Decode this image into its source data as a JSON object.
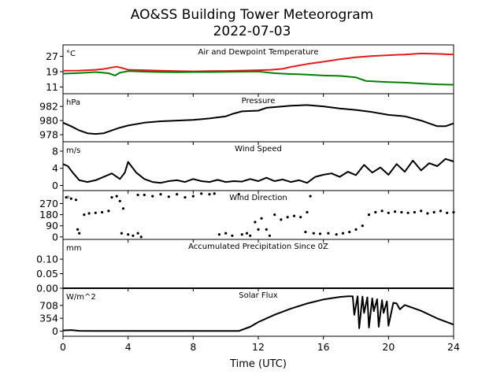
{
  "figure": {
    "title_line1": "AO&SS Building Tower Meteorogram",
    "title_line2": "2022-07-03",
    "xlabel": "Time (UTC)"
  },
  "chart_data": [
    {
      "type": "line",
      "title": "Air and Dewpoint Temperature",
      "unit": "°C",
      "x_ticks": [
        0,
        4,
        8,
        12,
        16,
        20,
        24
      ],
      "xlim": [
        0,
        24
      ],
      "y_ticks": [
        11,
        19,
        27
      ],
      "ylim": [
        7.5,
        33
      ],
      "grid": false,
      "series": [
        {
          "color": "#e41a1c",
          "x": [
            0,
            1,
            2,
            2.5,
            3,
            3.3,
            3.6,
            4,
            5,
            6,
            7,
            8,
            9,
            10,
            11,
            12,
            12.8,
            13.5,
            14,
            15,
            16,
            17,
            18,
            19,
            20,
            21,
            22,
            23,
            24
          ],
          "values": [
            19.5,
            19.6,
            20.0,
            20.4,
            21.2,
            21.6,
            21.0,
            20.0,
            19.8,
            19.5,
            19.3,
            19.2,
            19.3,
            19.4,
            19.6,
            19.8,
            20.0,
            20.5,
            21.5,
            23.0,
            24.2,
            25.5,
            26.5,
            27.2,
            27.6,
            28.0,
            28.5,
            28.3,
            28.0
          ]
        },
        {
          "color": "#008000",
          "x": [
            0,
            1,
            2,
            2.8,
            3.2,
            3.5,
            4,
            5,
            6,
            7,
            8,
            9,
            10,
            11,
            12,
            13,
            14,
            15,
            16,
            17,
            18,
            18.6,
            19,
            20,
            21,
            22,
            23,
            24
          ],
          "values": [
            18.0,
            18.3,
            18.8,
            18.2,
            17.0,
            18.5,
            19.3,
            19.0,
            18.8,
            18.7,
            18.8,
            18.8,
            18.9,
            19.0,
            19.1,
            18.2,
            17.8,
            17.5,
            17.0,
            16.8,
            16.0,
            14.2,
            14.0,
            13.6,
            13.3,
            12.8,
            12.4,
            12.2
          ]
        }
      ]
    },
    {
      "type": "line",
      "title": "Pressure",
      "unit": "hPa",
      "x_ticks": [
        0,
        4,
        8,
        12,
        16,
        20,
        24
      ],
      "xlim": [
        0,
        24
      ],
      "y_ticks": [
        978,
        980,
        982
      ],
      "ylim": [
        977,
        983.8
      ],
      "grid": false,
      "series": [
        {
          "color": "#000000",
          "x": [
            0,
            0.5,
            1,
            1.5,
            2,
            2.5,
            3,
            3.5,
            4,
            5,
            6,
            7,
            8,
            9,
            10,
            10.5,
            11,
            12,
            12.5,
            13,
            14,
            15,
            16,
            17,
            18,
            19,
            20,
            21,
            22,
            22.5,
            23,
            23.5,
            24
          ],
          "values": [
            979.7,
            979.2,
            978.6,
            978.2,
            978.1,
            978.2,
            978.6,
            979.0,
            979.3,
            979.7,
            979.9,
            980.0,
            980.1,
            980.3,
            980.6,
            981.0,
            981.3,
            981.4,
            981.8,
            981.9,
            982.1,
            982.2,
            982.0,
            981.7,
            981.5,
            981.2,
            980.8,
            980.6,
            980.0,
            979.6,
            979.2,
            979.2,
            979.6
          ]
        }
      ]
    },
    {
      "type": "line",
      "title": "Wind Speed",
      "unit": "m/s",
      "x_ticks": [
        0,
        4,
        8,
        12,
        16,
        20,
        24
      ],
      "xlim": [
        0,
        24
      ],
      "y_ticks": [
        0,
        4,
        8
      ],
      "ylim": [
        -1.2,
        10.2
      ],
      "grid": false,
      "series": [
        {
          "color": "#000000",
          "x": [
            0,
            0.3,
            0.6,
            1,
            1.5,
            2,
            2.5,
            3,
            3.5,
            3.8,
            4,
            4.5,
            5,
            5.5,
            6,
            6.5,
            7,
            7.5,
            8,
            8.5,
            9,
            9.5,
            10,
            10.5,
            11,
            11.5,
            12,
            12.5,
            13,
            13.5,
            14,
            14.5,
            15,
            15.5,
            16,
            16.5,
            17,
            17.5,
            18,
            18.5,
            19,
            19.5,
            20,
            20.5,
            21,
            21.5,
            22,
            22.5,
            23,
            23.5,
            24
          ],
          "values": [
            5.0,
            4.5,
            3.0,
            1.2,
            0.8,
            1.2,
            2.0,
            2.8,
            1.5,
            3.0,
            5.5,
            3.0,
            1.5,
            0.8,
            0.6,
            1.0,
            1.2,
            0.8,
            1.5,
            1.0,
            0.8,
            1.3,
            0.8,
            1.0,
            0.9,
            1.5,
            1.0,
            1.8,
            1.0,
            1.4,
            0.8,
            1.2,
            0.6,
            2.0,
            2.5,
            2.8,
            2.0,
            3.2,
            2.4,
            4.8,
            3.0,
            4.2,
            2.5,
            5.0,
            3.2,
            5.8,
            3.5,
            5.2,
            4.5,
            6.2,
            5.6
          ]
        }
      ]
    },
    {
      "type": "scatter",
      "title": "Wind Direction",
      "unit": "°",
      "x_ticks": [
        0,
        4,
        8,
        12,
        16,
        20,
        24
      ],
      "xlim": [
        0,
        24
      ],
      "y_ticks": [
        0,
        90,
        180,
        270
      ],
      "ylim": [
        -20,
        375
      ],
      "grid": false,
      "series": [
        {
          "color": "#000000",
          "points": [
            [
              0.2,
              320
            ],
            [
              0.5,
              310
            ],
            [
              0.8,
              300
            ],
            [
              0.9,
              60
            ],
            [
              1.0,
              30
            ],
            [
              1.3,
              180
            ],
            [
              1.6,
              190
            ],
            [
              2.0,
              195
            ],
            [
              2.4,
              200
            ],
            [
              2.8,
              210
            ],
            [
              3.0,
              320
            ],
            [
              3.3,
              330
            ],
            [
              3.5,
              290
            ],
            [
              3.7,
              230
            ],
            [
              3.6,
              30
            ],
            [
              4.0,
              20
            ],
            [
              4.3,
              10
            ],
            [
              4.6,
              30
            ],
            [
              4.8,
              0
            ],
            [
              4.6,
              340
            ],
            [
              5.0,
              340
            ],
            [
              5.5,
              330
            ],
            [
              6.0,
              345
            ],
            [
              6.5,
              325
            ],
            [
              7.0,
              345
            ],
            [
              7.5,
              320
            ],
            [
              8.0,
              330
            ],
            [
              8.5,
              350
            ],
            [
              9.0,
              345
            ],
            [
              9.3,
              350
            ],
            [
              9.6,
              20
            ],
            [
              10.0,
              30
            ],
            [
              10.4,
              10
            ],
            [
              10.8,
              345
            ],
            [
              11.0,
              20
            ],
            [
              11.3,
              30
            ],
            [
              11.5,
              10
            ],
            [
              11.8,
              120
            ],
            [
              12.0,
              60
            ],
            [
              12.2,
              150
            ],
            [
              12.5,
              60
            ],
            [
              12.7,
              10
            ],
            [
              13.0,
              180
            ],
            [
              13.4,
              140
            ],
            [
              13.8,
              160
            ],
            [
              14.2,
              170
            ],
            [
              14.6,
              160
            ],
            [
              14.9,
              40
            ],
            [
              15.0,
              200
            ],
            [
              15.2,
              330
            ],
            [
              15.4,
              30
            ],
            [
              15.8,
              25
            ],
            [
              16.3,
              30
            ],
            [
              16.8,
              20
            ],
            [
              17.2,
              30
            ],
            [
              17.6,
              40
            ],
            [
              18.0,
              60
            ],
            [
              18.4,
              90
            ],
            [
              18.8,
              180
            ],
            [
              19.2,
              200
            ],
            [
              19.6,
              210
            ],
            [
              20.0,
              195
            ],
            [
              20.4,
              205
            ],
            [
              20.8,
              200
            ],
            [
              21.2,
              195
            ],
            [
              21.6,
              200
            ],
            [
              22.0,
              210
            ],
            [
              22.4,
              190
            ],
            [
              22.8,
              200
            ],
            [
              23.2,
              210
            ],
            [
              23.6,
              195
            ],
            [
              24.0,
              200
            ]
          ]
        }
      ]
    },
    {
      "type": "line",
      "title": "Accumulated Precipitation Since 0Z",
      "unit": "mm",
      "x_ticks": [
        0,
        4,
        8,
        12,
        16,
        20,
        24
      ],
      "xlim": [
        0,
        24
      ],
      "y_ticks": [
        0.0,
        0.05,
        0.1
      ],
      "y_tick_labels": [
        "0.00",
        "0.05",
        "0.10"
      ],
      "ylim": [
        0,
        0.168
      ],
      "grid": false,
      "series": [
        {
          "color": "#000000",
          "x": [
            0,
            24
          ],
          "values": [
            0.0,
            0.0
          ]
        }
      ]
    },
    {
      "type": "line",
      "title": "Solar Flux",
      "unit": "W/m^2",
      "x_ticks": [
        0,
        4,
        8,
        12,
        16,
        20,
        24
      ],
      "x_tick_labels": [
        "0",
        "4",
        "8",
        "12",
        "16",
        "20",
        "24"
      ],
      "xlim": [
        0,
        24
      ],
      "y_ticks": [
        0,
        354,
        708
      ],
      "ylim": [
        -140,
        1180
      ],
      "grid": false,
      "series": [
        {
          "color": "#000000",
          "x": [
            0,
            0.5,
            1,
            2,
            4,
            6,
            8,
            10,
            10.8,
            11.5,
            12,
            13,
            14,
            15,
            16,
            17,
            17.5,
            17.8,
            17.9,
            18.1,
            18.2,
            18.4,
            18.5,
            18.7,
            18.8,
            19.0,
            19.1,
            19.3,
            19.4,
            19.6,
            19.7,
            19.9,
            20.0,
            20.3,
            20.5,
            20.7,
            21.0,
            22.0,
            23.0,
            24.0
          ],
          "values": [
            20,
            30,
            10,
            5,
            5,
            5,
            5,
            5,
            5,
            120,
            250,
            450,
            620,
            760,
            870,
            940,
            960,
            960,
            450,
            960,
            80,
            950,
            500,
            930,
            100,
            900,
            550,
            880,
            120,
            850,
            500,
            820,
            150,
            780,
            760,
            600,
            720,
            560,
            350,
            180
          ]
        }
      ]
    }
  ]
}
